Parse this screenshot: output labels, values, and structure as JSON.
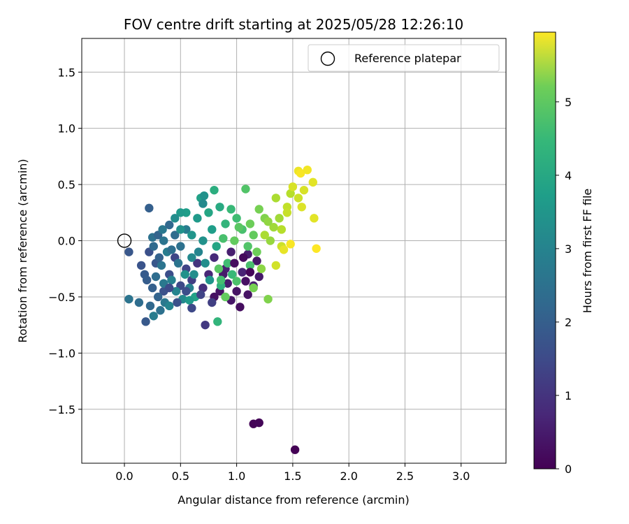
{
  "chart_data": {
    "type": "scatter",
    "title": "FOV centre drift starting at 2025/05/28 12:26:10",
    "xlabel": "Angular distance from reference (arcmin)",
    "ylabel": "Rotation from reference (arcmin)",
    "xlim": [
      -0.38,
      3.4
    ],
    "ylim": [
      -1.98,
      1.8
    ],
    "xticks": [
      0.0,
      0.5,
      1.0,
      1.5,
      2.0,
      2.5,
      3.0
    ],
    "xtick_labels": [
      "0.0",
      "0.5",
      "1.0",
      "1.5",
      "2.0",
      "2.5",
      "3.0"
    ],
    "yticks": [
      -1.5,
      -1.0,
      -0.5,
      0.0,
      0.5,
      1.0,
      1.5
    ],
    "ytick_labels": [
      "−1.5",
      "−1.0",
      "−0.5",
      "0.0",
      "0.5",
      "1.0",
      "1.5"
    ],
    "grid": true,
    "legend": {
      "position": "upper right",
      "entries": [
        {
          "label": "Reference platepar",
          "marker": "open-circle"
        }
      ]
    },
    "reference_point": {
      "x": 0.0,
      "y": 0.0
    },
    "colorbar": {
      "label": "Hours from first FF file",
      "colormap": "viridis",
      "range": [
        0,
        5.95
      ],
      "ticks": [
        0,
        1,
        2,
        3,
        4,
        5
      ],
      "tick_labels": [
        "0",
        "1",
        "2",
        "3",
        "4",
        "5"
      ]
    },
    "points": [
      {
        "x": 1.15,
        "y": -1.63,
        "h": 0.05
      },
      {
        "x": 1.2,
        "y": -1.62,
        "h": 0.08
      },
      {
        "x": 1.52,
        "y": -1.86,
        "h": 0.02
      },
      {
        "x": 0.8,
        "y": -0.5,
        "h": 0.25
      },
      {
        "x": 0.85,
        "y": -0.45,
        "h": 0.3
      },
      {
        "x": 0.95,
        "y": -0.53,
        "h": 0.35
      },
      {
        "x": 1.03,
        "y": -0.59,
        "h": 0.2
      },
      {
        "x": 1.1,
        "y": -0.48,
        "h": 0.3
      },
      {
        "x": 0.92,
        "y": -0.38,
        "h": 0.45
      },
      {
        "x": 1.15,
        "y": -0.4,
        "h": 0.5
      },
      {
        "x": 1.2,
        "y": -0.32,
        "h": 0.4
      },
      {
        "x": 1.05,
        "y": -0.28,
        "h": 0.6
      },
      {
        "x": 0.9,
        "y": -0.25,
        "h": 0.55
      },
      {
        "x": 0.75,
        "y": -0.3,
        "h": 0.65
      },
      {
        "x": 0.7,
        "y": -0.42,
        "h": 0.8
      },
      {
        "x": 0.65,
        "y": -0.2,
        "h": 0.9
      },
      {
        "x": 0.8,
        "y": -0.15,
        "h": 0.7
      },
      {
        "x": 0.95,
        "y": -0.1,
        "h": 0.5
      },
      {
        "x": 1.1,
        "y": -0.12,
        "h": 0.45
      },
      {
        "x": 1.18,
        "y": -0.18,
        "h": 0.35
      },
      {
        "x": 1.0,
        "y": -0.45,
        "h": 0.3
      },
      {
        "x": 1.08,
        "y": -0.36,
        "h": 0.25
      },
      {
        "x": 0.88,
        "y": -0.3,
        "h": 0.4
      },
      {
        "x": 0.72,
        "y": -0.75,
        "h": 1.0
      },
      {
        "x": 0.6,
        "y": -0.35,
        "h": 1.1
      },
      {
        "x": 0.55,
        "y": -0.25,
        "h": 1.2
      },
      {
        "x": 0.5,
        "y": -0.4,
        "h": 1.3
      },
      {
        "x": 0.45,
        "y": -0.15,
        "h": 1.25
      },
      {
        "x": 0.4,
        "y": -0.3,
        "h": 1.4
      },
      {
        "x": 0.35,
        "y": -0.45,
        "h": 1.5
      },
      {
        "x": 0.28,
        "y": -0.2,
        "h": 1.6
      },
      {
        "x": 0.22,
        "y": -0.1,
        "h": 1.45
      },
      {
        "x": 0.18,
        "y": -0.3,
        "h": 1.7
      },
      {
        "x": 0.15,
        "y": -0.22,
        "h": 1.55
      },
      {
        "x": 0.2,
        "y": -0.35,
        "h": 1.75
      },
      {
        "x": 0.25,
        "y": -0.42,
        "h": 1.8
      },
      {
        "x": 0.3,
        "y": -0.5,
        "h": 1.9
      },
      {
        "x": 0.19,
        "y": -0.72,
        "h": 1.65
      },
      {
        "x": 0.23,
        "y": -0.58,
        "h": 2.0
      },
      {
        "x": 0.04,
        "y": -0.1,
        "h": 1.6
      },
      {
        "x": 0.04,
        "y": -0.52,
        "h": 2.3
      },
      {
        "x": 0.13,
        "y": -0.55,
        "h": 2.1
      },
      {
        "x": 0.22,
        "y": 0.29,
        "h": 1.8
      },
      {
        "x": 0.25,
        "y": 0.03,
        "h": 2.2
      },
      {
        "x": 0.3,
        "y": 0.05,
        "h": 1.9
      },
      {
        "x": 0.34,
        "y": 0.1,
        "h": 2.4
      },
      {
        "x": 0.4,
        "y": 0.14,
        "h": 2.0
      },
      {
        "x": 0.45,
        "y": 0.05,
        "h": 2.1
      },
      {
        "x": 0.5,
        "y": -0.05,
        "h": 2.2
      },
      {
        "x": 0.55,
        "y": 0.1,
        "h": 2.5
      },
      {
        "x": 0.48,
        "y": -0.2,
        "h": 2.3
      },
      {
        "x": 0.42,
        "y": -0.35,
        "h": 2.6
      },
      {
        "x": 0.36,
        "y": -0.55,
        "h": 2.4
      },
      {
        "x": 0.32,
        "y": -0.62,
        "h": 2.2
      },
      {
        "x": 0.26,
        "y": -0.67,
        "h": 2.5
      },
      {
        "x": 0.4,
        "y": -0.58,
        "h": 2.7
      },
      {
        "x": 0.52,
        "y": -0.52,
        "h": 2.8
      },
      {
        "x": 0.58,
        "y": -0.42,
        "h": 2.6
      },
      {
        "x": 0.62,
        "y": -0.3,
        "h": 2.9
      },
      {
        "x": 0.66,
        "y": -0.1,
        "h": 2.7
      },
      {
        "x": 0.7,
        "y": 0.0,
        "h": 3.0
      },
      {
        "x": 0.6,
        "y": 0.05,
        "h": 3.1
      },
      {
        "x": 0.65,
        "y": 0.2,
        "h": 3.2
      },
      {
        "x": 0.55,
        "y": 0.25,
        "h": 3.3
      },
      {
        "x": 0.68,
        "y": 0.38,
        "h": 3.4
      },
      {
        "x": 0.71,
        "y": 0.4,
        "h": 3.0
      },
      {
        "x": 0.7,
        "y": 0.33,
        "h": 2.8
      },
      {
        "x": 0.75,
        "y": 0.25,
        "h": 3.5
      },
      {
        "x": 0.8,
        "y": 0.45,
        "h": 3.7
      },
      {
        "x": 0.85,
        "y": 0.3,
        "h": 3.6
      },
      {
        "x": 0.78,
        "y": 0.1,
        "h": 3.3
      },
      {
        "x": 0.82,
        "y": -0.05,
        "h": 3.5
      },
      {
        "x": 0.63,
        "y": -0.5,
        "h": 3.4
      },
      {
        "x": 0.58,
        "y": -0.53,
        "h": 3.2
      },
      {
        "x": 0.86,
        "y": -0.4,
        "h": 3.8
      },
      {
        "x": 0.9,
        "y": 0.15,
        "h": 3.9
      },
      {
        "x": 0.95,
        "y": 0.28,
        "h": 4.0
      },
      {
        "x": 1.0,
        "y": 0.2,
        "h": 4.1
      },
      {
        "x": 1.05,
        "y": 0.1,
        "h": 4.2
      },
      {
        "x": 1.1,
        "y": -0.05,
        "h": 4.3
      },
      {
        "x": 0.92,
        "y": -0.2,
        "h": 4.1
      },
      {
        "x": 0.84,
        "y": -0.25,
        "h": 4.4
      },
      {
        "x": 0.83,
        "y": -0.72,
        "h": 3.9
      },
      {
        "x": 0.9,
        "y": -0.5,
        "h": 4.5
      },
      {
        "x": 1.08,
        "y": 0.46,
        "h": 4.3
      },
      {
        "x": 1.12,
        "y": 0.15,
        "h": 4.6
      },
      {
        "x": 1.15,
        "y": 0.05,
        "h": 4.5
      },
      {
        "x": 1.2,
        "y": 0.28,
        "h": 4.7
      },
      {
        "x": 1.25,
        "y": 0.2,
        "h": 4.8
      },
      {
        "x": 1.18,
        "y": -0.1,
        "h": 4.6
      },
      {
        "x": 1.22,
        "y": -0.25,
        "h": 4.9
      },
      {
        "x": 1.15,
        "y": -0.42,
        "h": 4.7
      },
      {
        "x": 1.28,
        "y": -0.52,
        "h": 4.8
      },
      {
        "x": 1.3,
        "y": 0.0,
        "h": 5.0
      },
      {
        "x": 1.35,
        "y": 0.38,
        "h": 5.2
      },
      {
        "x": 1.38,
        "y": 0.2,
        "h": 5.1
      },
      {
        "x": 1.25,
        "y": 0.05,
        "h": 5.2
      },
      {
        "x": 1.4,
        "y": -0.05,
        "h": 5.5
      },
      {
        "x": 1.45,
        "y": 0.3,
        "h": 5.4
      },
      {
        "x": 1.48,
        "y": 0.42,
        "h": 5.3
      },
      {
        "x": 1.5,
        "y": 0.48,
        "h": 5.6
      },
      {
        "x": 1.55,
        "y": 0.62,
        "h": 5.8
      },
      {
        "x": 1.57,
        "y": 0.6,
        "h": 5.9
      },
      {
        "x": 1.63,
        "y": 0.63,
        "h": 5.85
      },
      {
        "x": 1.68,
        "y": 0.52,
        "h": 5.7
      },
      {
        "x": 1.6,
        "y": 0.45,
        "h": 5.6
      },
      {
        "x": 1.55,
        "y": 0.38,
        "h": 5.5
      },
      {
        "x": 1.58,
        "y": 0.3,
        "h": 5.65
      },
      {
        "x": 1.45,
        "y": 0.25,
        "h": 5.45
      },
      {
        "x": 1.4,
        "y": 0.1,
        "h": 5.3
      },
      {
        "x": 1.35,
        "y": -0.22,
        "h": 5.55
      },
      {
        "x": 1.42,
        "y": -0.08,
        "h": 5.75
      },
      {
        "x": 1.48,
        "y": -0.03,
        "h": 5.9
      },
      {
        "x": 1.69,
        "y": 0.2,
        "h": 5.7
      },
      {
        "x": 1.71,
        "y": -0.07,
        "h": 5.95
      },
      {
        "x": 1.33,
        "y": 0.12,
        "h": 5.1
      },
      {
        "x": 1.28,
        "y": 0.17,
        "h": 4.95
      },
      {
        "x": 0.5,
        "y": 0.25,
        "h": 3.2
      },
      {
        "x": 0.45,
        "y": 0.2,
        "h": 2.9
      },
      {
        "x": 0.5,
        "y": 0.1,
        "h": 3.0
      },
      {
        "x": 0.38,
        "y": -0.1,
        "h": 2.5
      },
      {
        "x": 0.33,
        "y": -0.22,
        "h": 2.3
      },
      {
        "x": 0.28,
        "y": -0.32,
        "h": 2.1
      },
      {
        "x": 0.35,
        "y": -0.38,
        "h": 2.4
      },
      {
        "x": 0.46,
        "y": -0.45,
        "h": 2.7
      },
      {
        "x": 0.54,
        "y": -0.3,
        "h": 3.0
      },
      {
        "x": 0.6,
        "y": -0.15,
        "h": 2.8
      },
      {
        "x": 0.72,
        "y": -0.2,
        "h": 2.9
      },
      {
        "x": 0.76,
        "y": -0.35,
        "h": 3.1
      },
      {
        "x": 0.68,
        "y": -0.48,
        "h": 1.2
      },
      {
        "x": 0.78,
        "y": -0.55,
        "h": 1.1
      },
      {
        "x": 0.6,
        "y": -0.6,
        "h": 1.3
      },
      {
        "x": 0.55,
        "y": -0.45,
        "h": 1.4
      },
      {
        "x": 0.47,
        "y": -0.55,
        "h": 1.5
      },
      {
        "x": 0.4,
        "y": -0.42,
        "h": 1.35
      },
      {
        "x": 0.31,
        "y": -0.15,
        "h": 1.85
      },
      {
        "x": 0.26,
        "y": -0.05,
        "h": 2.05
      },
      {
        "x": 0.35,
        "y": 0.0,
        "h": 2.3
      },
      {
        "x": 0.42,
        "y": -0.08,
        "h": 2.15
      },
      {
        "x": 0.88,
        "y": 0.02,
        "h": 4.2
      },
      {
        "x": 0.98,
        "y": 0.0,
        "h": 4.5
      },
      {
        "x": 1.02,
        "y": 0.12,
        "h": 4.4
      },
      {
        "x": 1.12,
        "y": -0.22,
        "h": 4.2
      },
      {
        "x": 0.96,
        "y": -0.3,
        "h": 4.0
      },
      {
        "x": 1.0,
        "y": -0.36,
        "h": 4.25
      },
      {
        "x": 0.86,
        "y": -0.35,
        "h": 4.15
      },
      {
        "x": 1.06,
        "y": -0.15,
        "h": 0.15
      },
      {
        "x": 1.12,
        "y": -0.28,
        "h": 0.1
      },
      {
        "x": 0.98,
        "y": -0.2,
        "h": 0.2
      }
    ]
  }
}
